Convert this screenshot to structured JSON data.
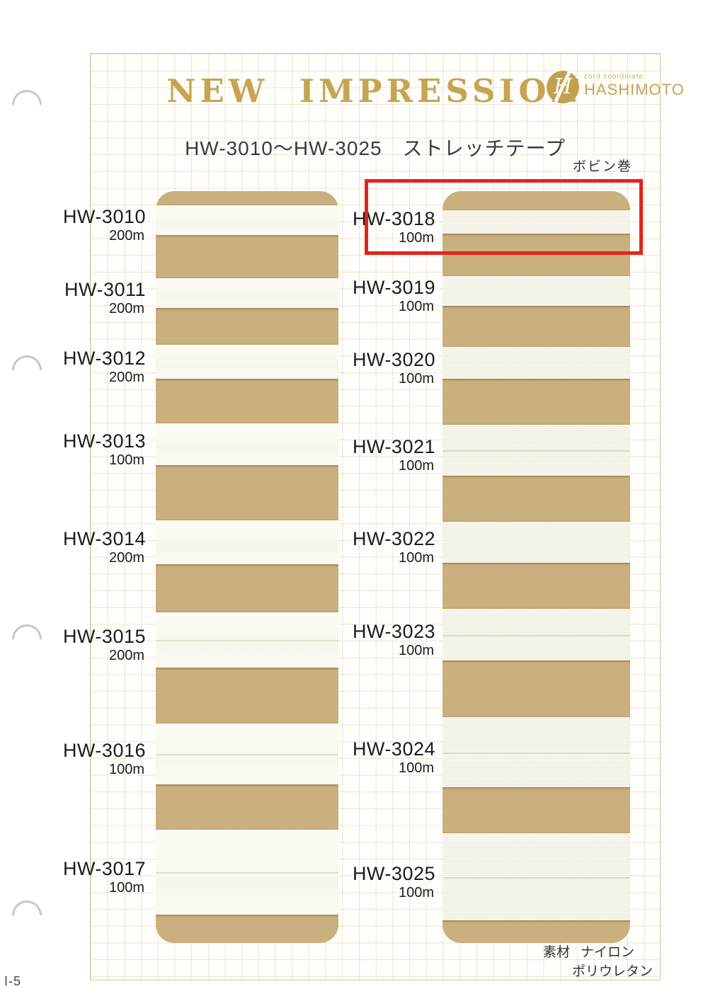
{
  "page": {
    "code_label": "I-5"
  },
  "header": {
    "title": "NEW  IMPRESSION",
    "logo": {
      "monogram": "H",
      "tagline": "cord coordinate",
      "brand": "HASHIMOTO"
    },
    "subtitle": "HW-3010〜HW-3025　ストレッチテープ",
    "winding_note": "ボビン巻"
  },
  "products": {
    "left": [
      {
        "code": "HW-3010",
        "length": "200m"
      },
      {
        "code": "HW-3011",
        "length": "200m"
      },
      {
        "code": "HW-3012",
        "length": "200m"
      },
      {
        "code": "HW-3013",
        "length": "100m"
      },
      {
        "code": "HW-3014",
        "length": "200m"
      },
      {
        "code": "HW-3015",
        "length": "200m"
      },
      {
        "code": "HW-3016",
        "length": "100m"
      },
      {
        "code": "HW-3017",
        "length": "100m"
      }
    ],
    "right": [
      {
        "code": "HW-3018",
        "length": "100m",
        "highlighted": true
      },
      {
        "code": "HW-3019",
        "length": "100m"
      },
      {
        "code": "HW-3020",
        "length": "100m"
      },
      {
        "code": "HW-3021",
        "length": "100m"
      },
      {
        "code": "HW-3022",
        "length": "100m"
      },
      {
        "code": "HW-3023",
        "length": "100m"
      },
      {
        "code": "HW-3024",
        "length": "100m"
      },
      {
        "code": "HW-3025",
        "length": "100m"
      }
    ]
  },
  "materials": {
    "label": "素材",
    "lines": [
      "ナイロン",
      "ポリウレタン"
    ]
  },
  "colors": {
    "accent_gold": "#c5a452",
    "card_tan": "#c9b07e",
    "highlight_red": "#e2251b"
  }
}
